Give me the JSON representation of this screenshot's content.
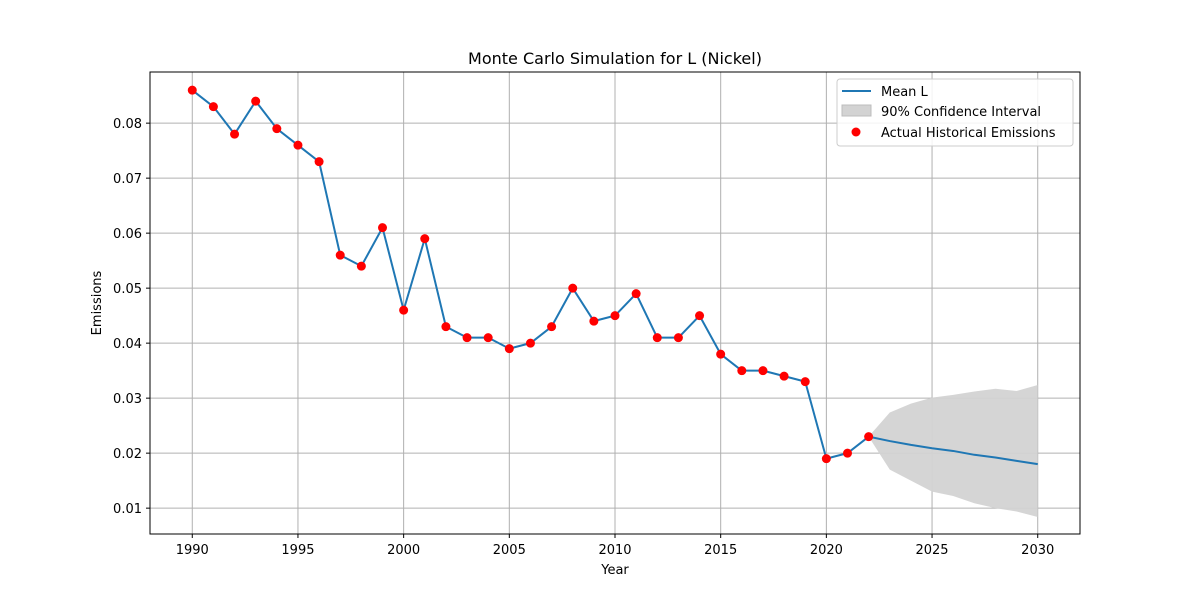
{
  "chart_data": {
    "type": "line",
    "title": "Monte Carlo Simulation for L (Nickel)",
    "xlabel": "Year",
    "ylabel": "Emissions",
    "xlim": [
      1988,
      2032
    ],
    "ylim": [
      0.0053,
      0.0893
    ],
    "xticks": [
      1990,
      1995,
      2000,
      2005,
      2010,
      2015,
      2020,
      2025,
      2030
    ],
    "yticks": [
      0.01,
      0.02,
      0.03,
      0.04,
      0.05,
      0.06,
      0.07,
      0.08
    ],
    "ytick_labels": [
      "0.01",
      "0.02",
      "0.03",
      "0.04",
      "0.05",
      "0.06",
      "0.07",
      "0.08"
    ],
    "grid": true,
    "legend_position": "top-right",
    "legend": [
      "Mean L",
      "90% Confidence Interval",
      "Actual Historical Emissions"
    ],
    "colors": {
      "mean_line": "#1f77b4",
      "confidence_fill": "#d3d3d3",
      "historical_points": "#ff0000",
      "grid": "#b0b0b0"
    },
    "series": [
      {
        "name": "Mean L",
        "x": [
          1990,
          1991,
          1992,
          1993,
          1994,
          1995,
          1996,
          1997,
          1998,
          1999,
          2000,
          2001,
          2002,
          2003,
          2004,
          2005,
          2006,
          2007,
          2008,
          2009,
          2010,
          2011,
          2012,
          2013,
          2014,
          2015,
          2016,
          2017,
          2018,
          2019,
          2020,
          2021,
          2022,
          2023,
          2024,
          2025,
          2026,
          2027,
          2028,
          2029,
          2030
        ],
        "y": [
          0.086,
          0.083,
          0.078,
          0.084,
          0.079,
          0.076,
          0.073,
          0.056,
          0.054,
          0.061,
          0.046,
          0.059,
          0.043,
          0.041,
          0.041,
          0.039,
          0.04,
          0.043,
          0.05,
          0.044,
          0.045,
          0.049,
          0.041,
          0.041,
          0.045,
          0.038,
          0.035,
          0.035,
          0.034,
          0.033,
          0.019,
          0.02,
          0.023,
          0.0222,
          0.0215,
          0.0209,
          0.0204,
          0.0197,
          0.0192,
          0.0186,
          0.018
        ]
      },
      {
        "name": "90% Confidence Interval",
        "x": [
          2022,
          2023,
          2024,
          2025,
          2026,
          2027,
          2028,
          2029,
          2030
        ],
        "lower": [
          0.023,
          0.017,
          0.015,
          0.013,
          0.0122,
          0.0109,
          0.01,
          0.0094,
          0.0084
        ],
        "upper": [
          0.023,
          0.0274,
          0.029,
          0.0301,
          0.0306,
          0.0312,
          0.0317,
          0.0313,
          0.0324
        ]
      },
      {
        "name": "Actual Historical Emissions",
        "x": [
          1990,
          1991,
          1992,
          1993,
          1994,
          1995,
          1996,
          1997,
          1998,
          1999,
          2000,
          2001,
          2002,
          2003,
          2004,
          2005,
          2006,
          2007,
          2008,
          2009,
          2010,
          2011,
          2012,
          2013,
          2014,
          2015,
          2016,
          2017,
          2018,
          2019,
          2020,
          2021,
          2022
        ],
        "y": [
          0.086,
          0.083,
          0.078,
          0.084,
          0.079,
          0.076,
          0.073,
          0.056,
          0.054,
          0.061,
          0.046,
          0.059,
          0.043,
          0.041,
          0.041,
          0.039,
          0.04,
          0.043,
          0.05,
          0.044,
          0.045,
          0.049,
          0.041,
          0.041,
          0.045,
          0.038,
          0.035,
          0.035,
          0.034,
          0.033,
          0.019,
          0.02,
          0.023
        ]
      }
    ]
  }
}
